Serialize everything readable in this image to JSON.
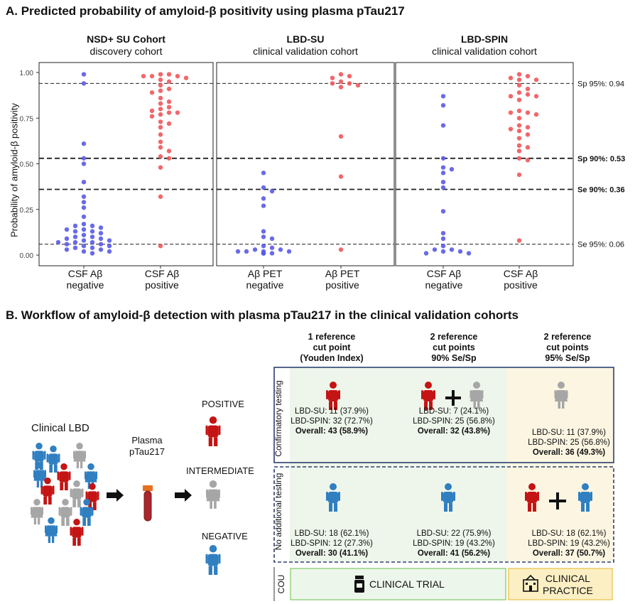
{
  "section_a_title": "A. Predicted probability of amyloid-β positivity using plasma pTau217",
  "section_b_title": "B. Workflow of amyloid-β detection with plasma pTau217 in the clinical validation cohorts",
  "panels": [
    {
      "title": "NSD+ SU Cohort",
      "subtitle": "discovery cohort",
      "cat_labels": [
        [
          "CSF Aβ",
          "negative"
        ],
        [
          "CSF Aβ",
          "positive"
        ]
      ]
    },
    {
      "title": "LBD-SU",
      "subtitle": "clinical validation cohort",
      "cat_labels": [
        [
          "Aβ PET",
          "negative"
        ],
        [
          "Aβ PET",
          "positive"
        ]
      ]
    },
    {
      "title": "LBD-SPIN",
      "subtitle": "clinical validation cohort",
      "cat_labels": [
        [
          "CSF Aβ",
          "negative"
        ],
        [
          "CSF Aβ",
          "positive"
        ]
      ]
    }
  ],
  "chart_data": {
    "type": "scatter",
    "ylabel": "Probability of amyloid-β positivity",
    "ylim": [
      0,
      1
    ],
    "yticks": [
      "0.00",
      "0.25",
      "0.50",
      "0.75",
      "1.00"
    ],
    "thresholds": [
      {
        "label": "Sp 95%: 0.94",
        "value": 0.94,
        "bold": false
      },
      {
        "label": "Sp 90%: 0.53",
        "value": 0.53,
        "bold": true
      },
      {
        "label": "Se 90%: 0.36",
        "value": 0.36,
        "bold": true
      },
      {
        "label": "Se 95%: 0.06",
        "value": 0.06,
        "bold": false
      }
    ],
    "colors": {
      "negative": "#5a5ae6",
      "positive": "#f0575a"
    },
    "series": [
      {
        "panel": 0,
        "group": "negative",
        "values": [
          0.99,
          0.94,
          0.61,
          0.53,
          0.5,
          0.4,
          0.32,
          0.29,
          0.26,
          0.21,
          0.17,
          0.16,
          0.16,
          0.15,
          0.14,
          0.14,
          0.13,
          0.13,
          0.12,
          0.11,
          0.1,
          0.1,
          0.09,
          0.09,
          0.08,
          0.08,
          0.07,
          0.07,
          0.07,
          0.06,
          0.06,
          0.05,
          0.05,
          0.04,
          0.04,
          0.03,
          0.03,
          0.02,
          0.02,
          0.01
        ]
      },
      {
        "panel": 0,
        "group": "positive",
        "values": [
          0.99,
          0.99,
          0.98,
          0.98,
          0.98,
          0.97,
          0.96,
          0.95,
          0.93,
          0.91,
          0.9,
          0.89,
          0.86,
          0.84,
          0.83,
          0.81,
          0.8,
          0.79,
          0.78,
          0.78,
          0.77,
          0.76,
          0.73,
          0.72,
          0.7,
          0.66,
          0.62,
          0.59,
          0.57,
          0.54,
          0.53,
          0.48,
          0.32,
          0.05
        ]
      },
      {
        "panel": 1,
        "group": "negative",
        "values": [
          0.45,
          0.37,
          0.35,
          0.31,
          0.27,
          0.13,
          0.1,
          0.09,
          0.05,
          0.04,
          0.03,
          0.03,
          0.02,
          0.02,
          0.02,
          0.02,
          0.01,
          0.01,
          0.01,
          0.01,
          0.01,
          0.01
        ]
      },
      {
        "panel": 1,
        "group": "positive",
        "values": [
          0.99,
          0.98,
          0.97,
          0.95,
          0.94,
          0.94,
          0.93,
          0.92,
          0.65,
          0.43,
          0.03
        ]
      },
      {
        "panel": 2,
        "group": "negative",
        "values": [
          0.87,
          0.82,
          0.71,
          0.53,
          0.48,
          0.47,
          0.45,
          0.4,
          0.37,
          0.24,
          0.12,
          0.09,
          0.05,
          0.03,
          0.03,
          0.02,
          0.02,
          0.01,
          0.01
        ]
      },
      {
        "panel": 2,
        "group": "positive",
        "values": [
          0.99,
          0.98,
          0.97,
          0.96,
          0.96,
          0.93,
          0.91,
          0.89,
          0.88,
          0.87,
          0.87,
          0.85,
          0.79,
          0.78,
          0.78,
          0.77,
          0.75,
          0.71,
          0.7,
          0.69,
          0.68,
          0.66,
          0.64,
          0.6,
          0.59,
          0.57,
          0.53,
          0.52,
          0.44,
          0.08
        ]
      }
    ]
  },
  "workflow": {
    "clinical_label": "Clinical LBD",
    "plasma_label_1": "Plasma",
    "plasma_label_2": "pTau217",
    "positive_label": "POSITIVE",
    "intermediate_label": "INTERMEDIATE",
    "negative_label": "NEGATIVE",
    "colors": {
      "positive": "#c41414",
      "intermediate": "#a6a6a6",
      "negative": "#2f7fc1"
    }
  },
  "table": {
    "col_heads": [
      [
        "1 reference",
        "cut point",
        "(Youden Index)"
      ],
      [
        "2 reference",
        "cut points",
        "90% Se/Sp"
      ],
      [
        "2 reference",
        "cut points",
        "95% Se/Sp"
      ]
    ],
    "row_labels": [
      "Confirmatory testing",
      "No additional testing"
    ],
    "rows": [
      [
        {
          "l1": "LBD-SU: 11 (37.9%)",
          "l2": "LBD-SPIN: 32 (72.7%)",
          "l3": "Overall: 43 (58.9%)"
        },
        {
          "l1": "LBD-SU: 7 (24.1%)",
          "l2": "LBD-SPIN: 25 (56.8%)",
          "l3": "Overall: 32 (43.8%)"
        },
        {
          "l1": "LBD-SU: 11 (37.9%)",
          "l2": "LBD-SPIN: 25 (56.8%)",
          "l3": "Overall: 36 (49.3%)"
        }
      ],
      [
        {
          "l1": "LBD-SU: 18 (62.1%)",
          "l2": "LBD-SPIN: 12 (27.3%)",
          "l3": "Overall: 30 (41.1%)"
        },
        {
          "l1": "LBD-SU: 22 (75.9%)",
          "l2": "LBD-SPIN: 19 (43.2%)",
          "l3": "Overall: 41 (56.2%)"
        },
        {
          "l1": "LBD-SU: 18 (62.1%)",
          "l2": "LBD-SPIN: 19 (43.2%)",
          "l3": "Overall: 37 (50.7%)"
        }
      ]
    ],
    "cou_label": "COU",
    "clinical_trial_label": "CLINICAL TRIAL",
    "clinical_practice_label_1": "CLINICAL",
    "clinical_practice_label_2": "PRACTICE",
    "colors": {
      "trial_bg": "#eef5ea",
      "practice_bg": "#fbf5e2",
      "trial_box_bg": "#edf6ea",
      "trial_box_border": "#8fcf7a",
      "practice_box_bg": "#fcefc4",
      "practice_box_border": "#ecc95a",
      "frame": "#2b3f6e"
    }
  }
}
